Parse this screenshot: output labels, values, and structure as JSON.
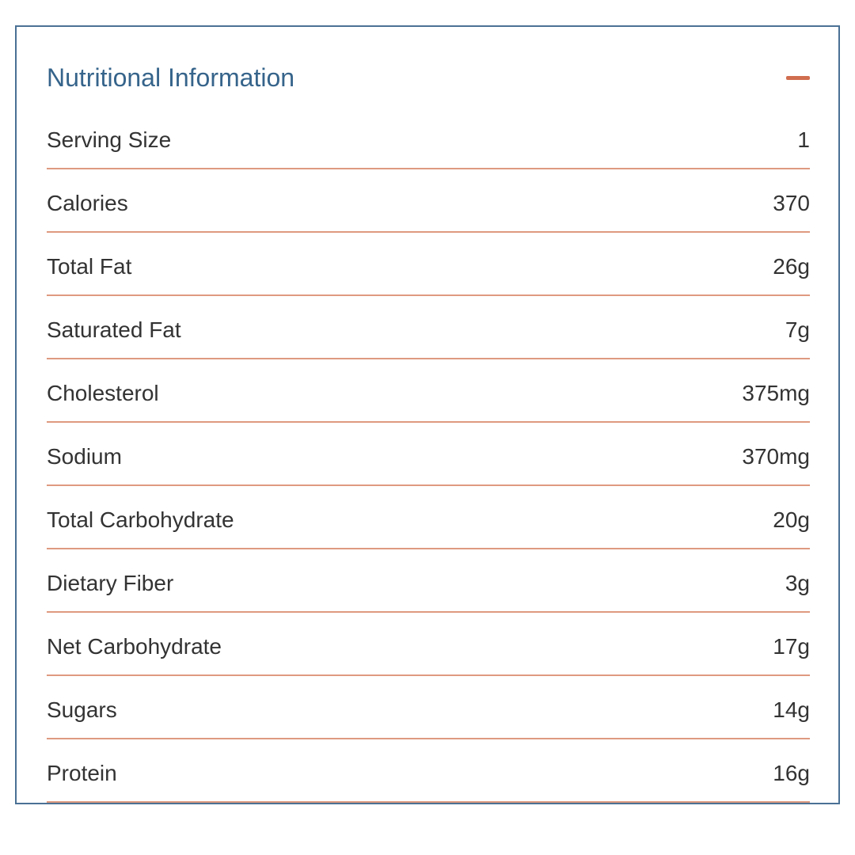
{
  "panel": {
    "title": "Nutritional Information",
    "collapse_icon": "minus-icon",
    "state": "expanded"
  },
  "colors": {
    "border": "#4a7194",
    "title": "#36648b",
    "separator": "#de9a80",
    "minus_icon": "#d06e50",
    "row_text": "#333333",
    "background": "#ffffff"
  },
  "rows": [
    {
      "label": "Serving Size",
      "value": "1"
    },
    {
      "label": "Calories",
      "value": "370"
    },
    {
      "label": "Total Fat",
      "value": "26g"
    },
    {
      "label": "Saturated Fat",
      "value": "7g"
    },
    {
      "label": "Cholesterol",
      "value": "375mg"
    },
    {
      "label": "Sodium",
      "value": "370mg"
    },
    {
      "label": "Total Carbohydrate",
      "value": "20g"
    },
    {
      "label": "Dietary Fiber",
      "value": "3g"
    },
    {
      "label": "Net Carbohydrate",
      "value": "17g"
    },
    {
      "label": "Sugars",
      "value": "14g"
    },
    {
      "label": "Protein",
      "value": "16g"
    }
  ]
}
